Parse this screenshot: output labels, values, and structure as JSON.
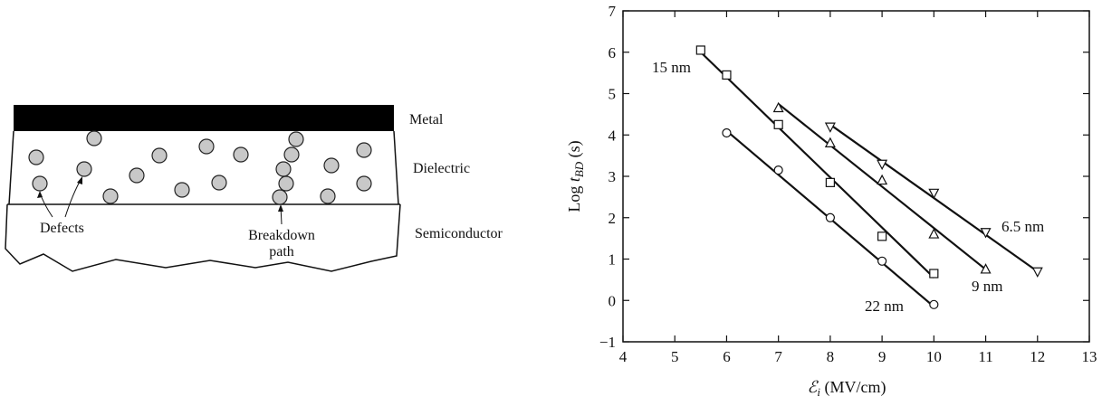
{
  "diagram": {
    "layer_labels": {
      "metal": "Metal",
      "dielectric": "Dielectric",
      "semiconductor": "Semiconductor"
    },
    "annotations": {
      "defects": "Defects",
      "breakdown_line1": "Breakdown",
      "breakdown_line2": "path"
    },
    "colors": {
      "defect_fill": "#c8c8c8",
      "metal_fill": "#000000"
    }
  },
  "chart_data": {
    "type": "line",
    "xlabel_prefix": "ℰ",
    "xlabel_sub": "i",
    "xlabel_suffix": " (MV/cm)",
    "ylabel_prefix": "Log ",
    "ylabel_var": "t",
    "ylabel_sub": "BD",
    "ylabel_suffix": " (s)",
    "xlim": [
      4,
      13
    ],
    "ylim": [
      -1,
      7
    ],
    "xticks": [
      4,
      5,
      6,
      7,
      8,
      9,
      10,
      11,
      12,
      13
    ],
    "yticks": [
      -1,
      0,
      1,
      2,
      3,
      4,
      5,
      6,
      7
    ],
    "series": [
      {
        "name": "15 nm",
        "marker": "square",
        "points": [
          [
            5.5,
            6.05
          ],
          [
            6,
            5.45
          ],
          [
            7,
            4.25
          ],
          [
            8,
            2.85
          ],
          [
            9,
            1.55
          ],
          [
            10,
            0.65
          ]
        ],
        "fit": [
          [
            5.5,
            6.0
          ],
          [
            10,
            0.55
          ]
        ]
      },
      {
        "name": "9 nm",
        "marker": "triangle-up",
        "points": [
          [
            7,
            4.65
          ],
          [
            8,
            3.8
          ],
          [
            9,
            2.9
          ],
          [
            10,
            1.6
          ],
          [
            11,
            0.75
          ]
        ],
        "fit": [
          [
            7,
            4.75
          ],
          [
            11,
            0.75
          ]
        ]
      },
      {
        "name": "6.5 nm",
        "marker": "triangle-down",
        "points": [
          [
            8,
            4.2
          ],
          [
            9,
            3.3
          ],
          [
            10,
            2.6
          ],
          [
            11,
            1.65
          ],
          [
            12,
            0.7
          ]
        ],
        "fit": [
          [
            8,
            4.25
          ],
          [
            12,
            0.7
          ]
        ]
      },
      {
        "name": "22 nm",
        "marker": "circle",
        "points": [
          [
            6,
            4.05
          ],
          [
            7,
            3.15
          ],
          [
            8,
            2.0
          ],
          [
            9,
            0.95
          ],
          [
            10,
            -0.1
          ]
        ],
        "fit": [
          [
            6,
            4.1
          ],
          [
            10,
            -0.15
          ]
        ]
      }
    ]
  }
}
